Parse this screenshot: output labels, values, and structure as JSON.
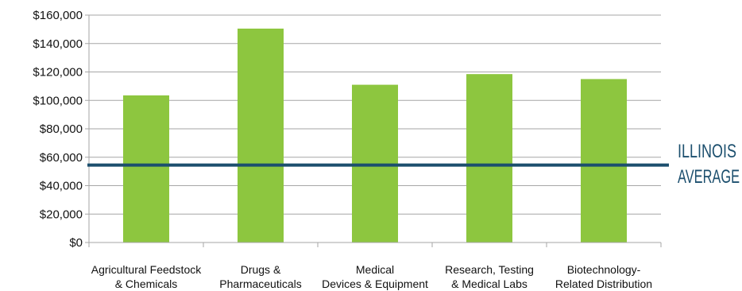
{
  "chart_data": {
    "type": "bar",
    "categories": [
      [
        "Agricultural Feedstock",
        "& Chemicals"
      ],
      [
        "Drugs &",
        "Pharmaceuticals"
      ],
      [
        "Medical",
        "Devices & Equipment"
      ],
      [
        "Research, Testing",
        "& Medical Labs"
      ],
      [
        "Biotechnology-",
        "Related Distribution"
      ]
    ],
    "values": [
      103500,
      150500,
      111000,
      118500,
      115000
    ],
    "ylim": [
      0,
      160000
    ],
    "yticks": [
      0,
      20000,
      40000,
      60000,
      80000,
      100000,
      120000,
      140000,
      160000
    ],
    "ytick_labels": [
      "$0",
      "$20,000",
      "$40,000",
      "$60,000",
      "$80,000",
      "$100,000",
      "$120,000",
      "$140,000",
      "$160,000"
    ],
    "grid": true,
    "reference_line": {
      "value": 54500,
      "label_lines": [
        "ILLINOIS",
        "AVERAGE"
      ],
      "color": "#1c4f6e"
    },
    "bar_color": "#8dc63f",
    "grid_color": "#a6a6a6"
  }
}
